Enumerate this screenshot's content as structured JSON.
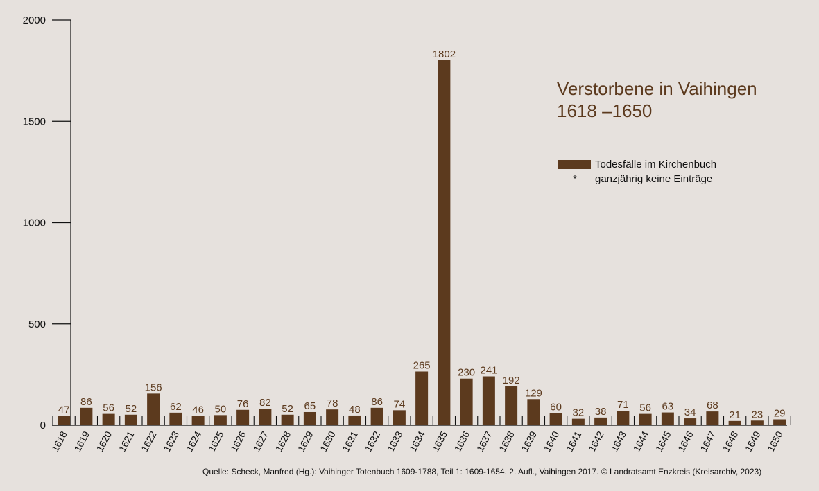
{
  "chart_data": {
    "type": "bar",
    "title": "Verstorbene in Vaihingen",
    "subtitle": "1618 –1650",
    "categories": [
      "1618",
      "1619",
      "1620",
      "1621",
      "1622",
      "1623",
      "1624",
      "1625",
      "1626",
      "1627",
      "1628",
      "1629",
      "1630",
      "1631",
      "1632",
      "1633",
      "1634",
      "1635",
      "1636",
      "1637",
      "1638",
      "1639",
      "1640",
      "1641",
      "1642",
      "1643",
      "1644",
      "1645",
      "1646",
      "1647",
      "1648",
      "1649",
      "1650"
    ],
    "values": [
      47,
      86,
      56,
      52,
      156,
      62,
      46,
      50,
      76,
      82,
      52,
      65,
      78,
      48,
      86,
      74,
      265,
      1802,
      230,
      241,
      192,
      129,
      60,
      32,
      38,
      71,
      56,
      63,
      34,
      68,
      21,
      23,
      29
    ],
    "ylim": [
      0,
      2000
    ],
    "yticks": [
      0,
      500,
      1000,
      1500,
      2000
    ],
    "grid": false,
    "legend_position": "top-right",
    "legend": [
      {
        "label": "Todesfälle im Kirchenbuch",
        "mark": "bar"
      },
      {
        "label": "ganzjährig keine Einträge",
        "mark": "*"
      }
    ],
    "source": "Quelle: Scheck, Manfred (Hg.): Vaihinger Totenbuch 1609-1788, Teil 1: 1609-1654. 2. Aufl., Vaihingen 2017.  © Landratsamt Enzkreis (Kreisarchiv, 2023)"
  },
  "colors": {
    "background": "#e6e1dd",
    "bar": "#5c3a1e",
    "label": "#5c3a1e",
    "axis": "#111111"
  }
}
